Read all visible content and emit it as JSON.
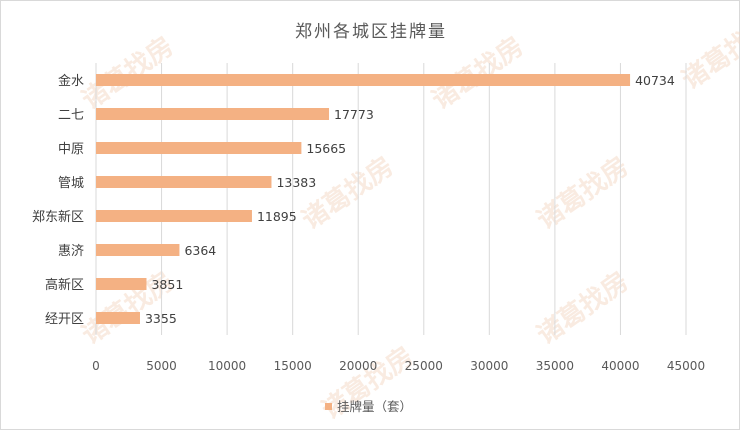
{
  "chart_data": {
    "type": "bar",
    "orientation": "horizontal",
    "title": "郑州各城区挂牌量",
    "categories": [
      "金水",
      "二七",
      "中原",
      "管城",
      "郑东新区",
      "惠济",
      "高新区",
      "经开区"
    ],
    "series": [
      {
        "name": "挂牌量（套）",
        "values": [
          40734,
          17773,
          15665,
          13383,
          11895,
          6364,
          3851,
          3355
        ]
      }
    ],
    "xlim": [
      0,
      45000
    ],
    "xticks": [
      0,
      5000,
      10000,
      15000,
      20000,
      25000,
      30000,
      35000,
      40000,
      45000
    ],
    "grid": "vertical",
    "legend": "bottom",
    "data_labels": true,
    "color": "#f4b183"
  },
  "watermark": "诸葛找房"
}
